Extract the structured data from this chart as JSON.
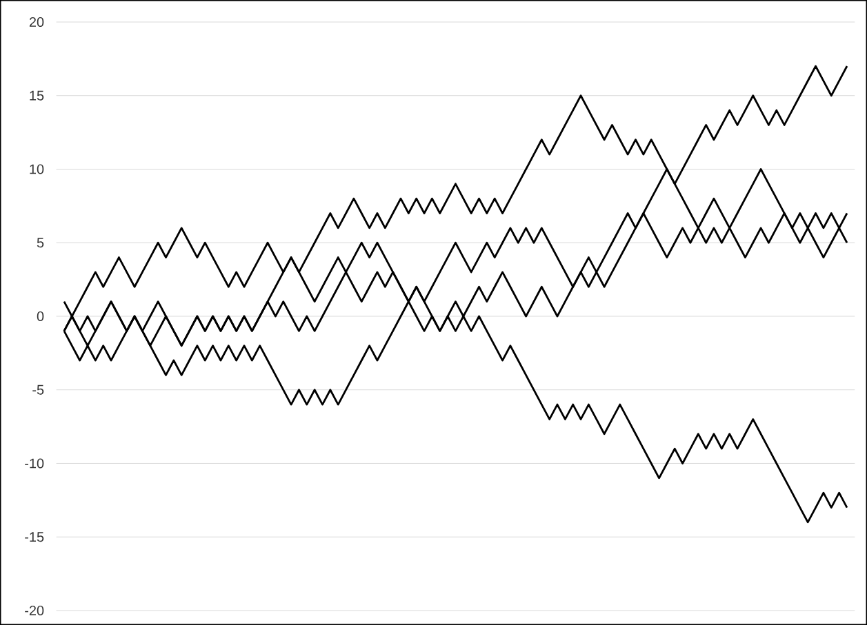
{
  "chart_data": {
    "type": "line",
    "ylim": [
      -20,
      20
    ],
    "yticks": [
      -20,
      -15,
      -10,
      -5,
      0,
      5,
      10,
      15,
      20
    ],
    "grid": "y",
    "tick_labels": "y",
    "categories": [
      null,
      null,
      null,
      null,
      null,
      null,
      null,
      null,
      null,
      null,
      null,
      null,
      null,
      null,
      null,
      null,
      null,
      null,
      null,
      null,
      null,
      null,
      null,
      null,
      null,
      null,
      null,
      null,
      null,
      null,
      null,
      null,
      null,
      null,
      null,
      null,
      null,
      null,
      null,
      null,
      null,
      null,
      null,
      null,
      null,
      null,
      null,
      null,
      null,
      null,
      null,
      null,
      null,
      null,
      null,
      null,
      null,
      null,
      null,
      null,
      null,
      null,
      null,
      null,
      null,
      null,
      null,
      null,
      null,
      null,
      null,
      null,
      null,
      null,
      null,
      null,
      null,
      null,
      null,
      null,
      null,
      null,
      null,
      null,
      null,
      null,
      null,
      null,
      null,
      null,
      null,
      null,
      null,
      null,
      null,
      null,
      null,
      null,
      null,
      null,
      null
    ],
    "series": [
      {
        "color": "#000000",
        "values": [
          -1,
          0,
          1,
          2,
          3,
          2,
          3,
          4,
          3,
          2,
          3,
          4,
          5,
          4,
          5,
          6,
          5,
          4,
          5,
          4,
          3,
          2,
          3,
          2,
          3,
          4,
          5,
          4,
          3,
          4,
          3,
          4,
          5,
          6,
          7,
          6,
          7,
          8,
          7,
          6,
          7,
          6,
          7,
          8,
          7,
          8,
          7,
          8,
          7,
          8,
          9,
          8,
          7,
          8,
          7,
          8,
          7,
          8,
          9,
          10,
          11,
          12,
          11,
          12,
          13,
          14,
          15,
          14,
          13,
          12,
          13,
          12,
          11,
          12,
          11,
          12,
          11,
          10,
          9,
          8,
          7,
          6,
          5,
          6,
          5,
          6,
          7,
          8,
          9,
          10,
          9,
          8,
          7,
          6,
          5,
          6,
          5,
          4,
          5,
          6,
          7
        ]
      },
      {
        "color": "#000000",
        "values": [
          -1,
          -2,
          -3,
          -2,
          -3,
          -2,
          -3,
          -2,
          -1,
          0,
          -1,
          -2,
          -3,
          -4,
          -3,
          -4,
          -3,
          -2,
          -3,
          -2,
          -3,
          -2,
          -3,
          -2,
          -3,
          -2,
          -3,
          -4,
          -5,
          -6,
          -5,
          -6,
          -5,
          -6,
          -5,
          -6,
          -5,
          -4,
          -3,
          -2,
          -3,
          -2,
          -1,
          0,
          1,
          2,
          1,
          2,
          3,
          4,
          5,
          4,
          3,
          4,
          5,
          4,
          5,
          6,
          5,
          6,
          5,
          6,
          5,
          4,
          3,
          2,
          3,
          2,
          3,
          4,
          5,
          6,
          7,
          6,
          7,
          8,
          9,
          10,
          9,
          10,
          11,
          12,
          13,
          12,
          13,
          14,
          13,
          14,
          15,
          14,
          13,
          14,
          13,
          14,
          15,
          16,
          17,
          16,
          15,
          16,
          17
        ]
      },
      {
        "color": "#000000",
        "values": [
          1,
          0,
          -1,
          0,
          -1,
          0,
          1,
          0,
          -1,
          0,
          -1,
          -2,
          -1,
          0,
          -1,
          -2,
          -1,
          0,
          -1,
          0,
          -1,
          0,
          -1,
          0,
          -1,
          0,
          1,
          2,
          3,
          4,
          3,
          2,
          1,
          2,
          3,
          4,
          3,
          2,
          1,
          2,
          3,
          2,
          3,
          2,
          1,
          0,
          -1,
          0,
          -1,
          0,
          -1,
          0,
          1,
          2,
          1,
          2,
          3,
          2,
          1,
          0,
          1,
          2,
          1,
          0,
          1,
          2,
          3,
          4,
          3,
          2,
          3,
          4,
          5,
          6,
          7,
          6,
          5,
          4,
          5,
          6,
          5,
          6,
          7,
          8,
          7,
          6,
          5,
          4,
          5,
          6,
          5,
          6,
          7,
          6,
          7,
          6,
          7,
          6,
          7,
          6,
          5
        ]
      },
      {
        "color": "#000000",
        "values": [
          -1,
          0,
          -1,
          -2,
          -1,
          0,
          1,
          0,
          -1,
          0,
          -1,
          0,
          1,
          0,
          -1,
          -2,
          -1,
          0,
          -1,
          0,
          -1,
          0,
          -1,
          0,
          -1,
          0,
          1,
          0,
          1,
          0,
          -1,
          0,
          -1,
          0,
          1,
          2,
          3,
          4,
          5,
          4,
          5,
          4,
          3,
          2,
          1,
          2,
          1,
          0,
          -1,
          0,
          1,
          0,
          -1,
          0,
          -1,
          -2,
          -3,
          -2,
          -3,
          -4,
          -5,
          -6,
          -7,
          -6,
          -7,
          -6,
          -7,
          -6,
          -7,
          -8,
          -7,
          -6,
          -7,
          -8,
          -9,
          -10,
          -11,
          -10,
          -9,
          -10,
          -9,
          -8,
          -9,
          -8,
          -9,
          -8,
          -9,
          -8,
          -7,
          -8,
          -9,
          -10,
          -11,
          -12,
          -13,
          -14,
          -13,
          -12,
          -13,
          -12,
          -13
        ]
      }
    ]
  }
}
